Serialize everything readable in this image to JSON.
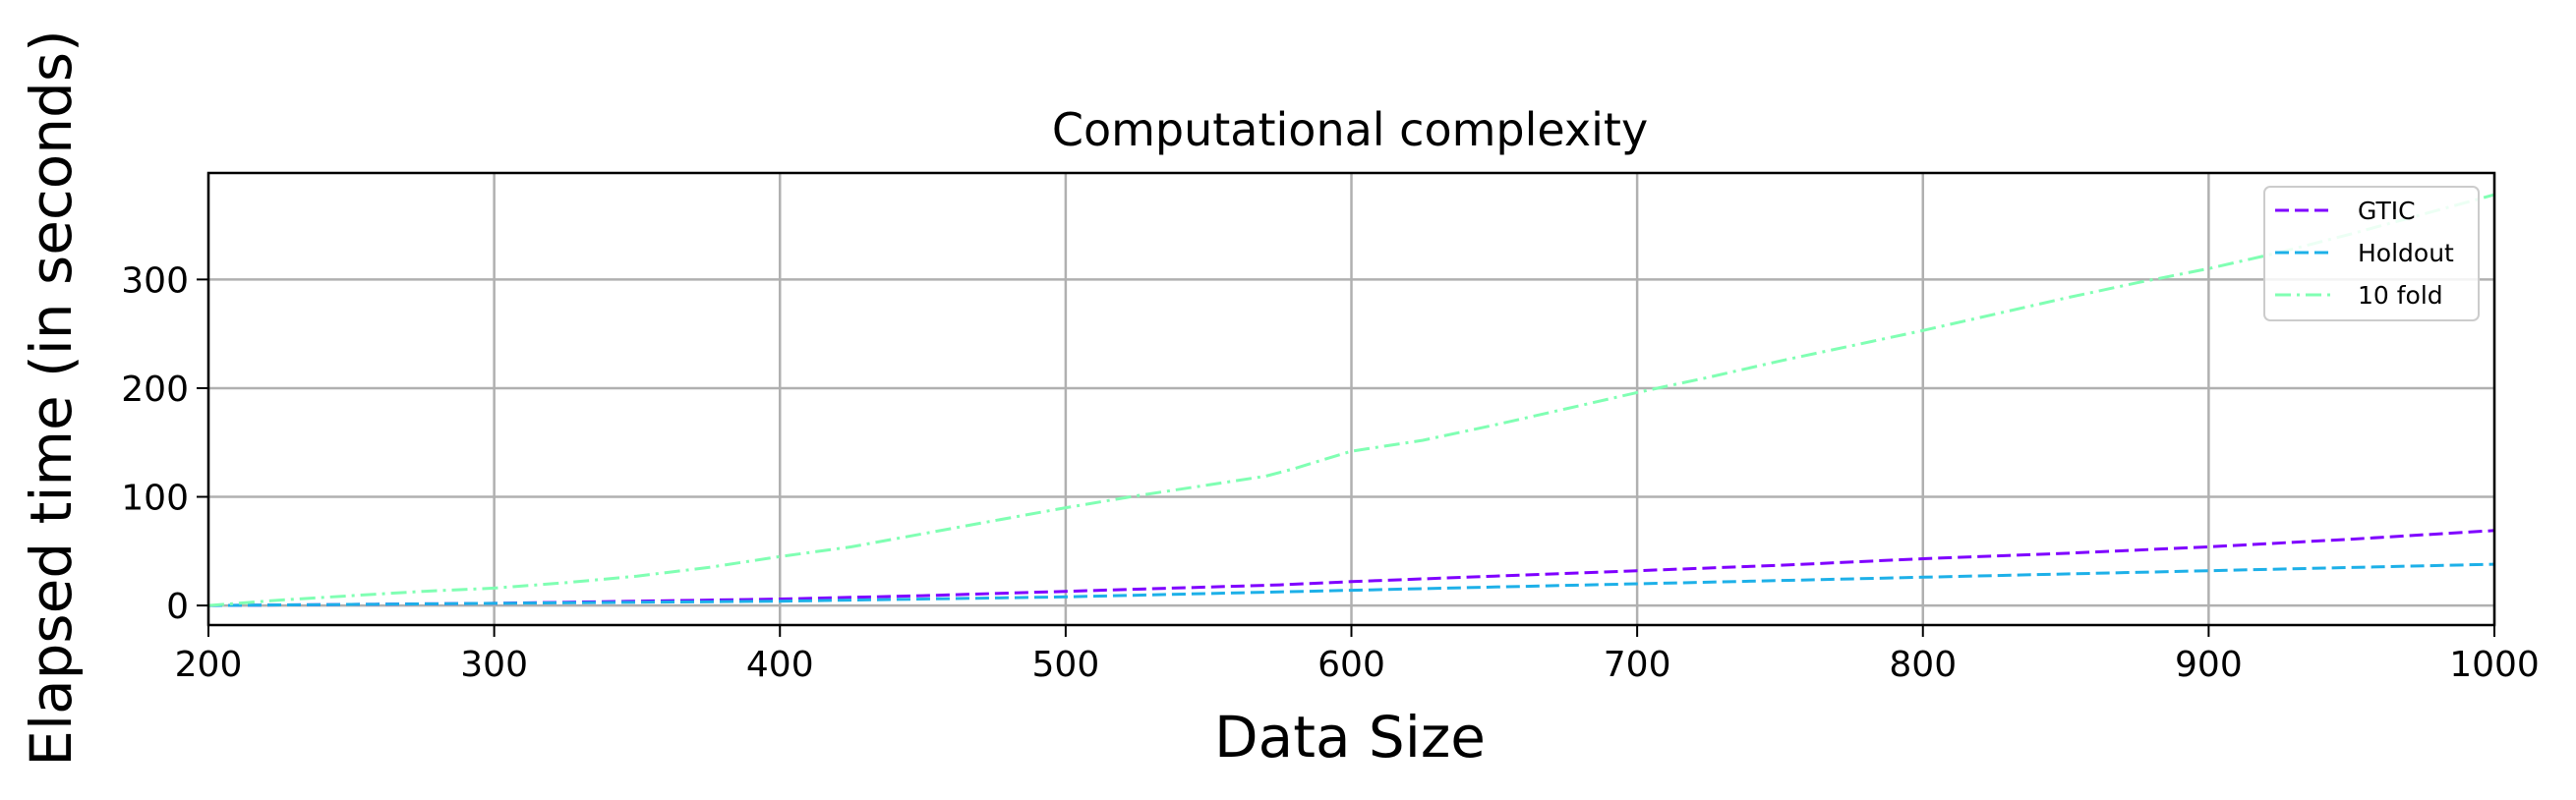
{
  "chart_data": {
    "type": "line",
    "title": "Computational complexity",
    "xlabel": "Data Size",
    "ylabel": "Elapsed time (in seconds)",
    "xlim": [
      200,
      1000
    ],
    "ylim": [
      -18,
      398
    ],
    "xticks": [
      200,
      300,
      400,
      500,
      600,
      700,
      800,
      900,
      1000
    ],
    "yticks": [
      0,
      100,
      200,
      300
    ],
    "grid": true,
    "legend_position": "top-right",
    "series": [
      {
        "name": "GTIC",
        "color": "#7f00ff",
        "linestyle": "dashed",
        "x": [
          200,
          250,
          300,
          350,
          400,
          450,
          500,
          550,
          575,
          600,
          650,
          700,
          750,
          800,
          850,
          900,
          950,
          1000
        ],
        "y": [
          0,
          1,
          2,
          4,
          6,
          9,
          13,
          17,
          19,
          22,
          27,
          32,
          37,
          43,
          48,
          54,
          61,
          69
        ]
      },
      {
        "name": "Holdout",
        "color": "#1db0e8",
        "linestyle": "dashed",
        "x": [
          200,
          250,
          300,
          350,
          400,
          450,
          500,
          550,
          600,
          650,
          700,
          750,
          800,
          850,
          900,
          950,
          1000
        ],
        "y": [
          0,
          1,
          2,
          3,
          4,
          6,
          8,
          11,
          14,
          17,
          20,
          23,
          26,
          29,
          32,
          35,
          38
        ]
      },
      {
        "name": "10 fold",
        "color": "#80ffb3",
        "linestyle": "dashdot",
        "x": [
          200,
          225,
          250,
          275,
          300,
          325,
          350,
          375,
          400,
          425,
          450,
          475,
          500,
          525,
          550,
          570,
          580,
          600,
          625,
          650,
          675,
          700,
          725,
          750,
          775,
          800,
          825,
          850,
          875,
          900,
          925,
          950,
          975,
          1000
        ],
        "y": [
          0,
          5,
          9,
          13,
          16,
          21,
          27,
          35,
          45,
          54,
          66,
          78,
          90,
          101,
          111,
          119,
          126,
          142,
          152,
          166,
          181,
          196,
          210,
          225,
          239,
          253,
          268,
          283,
          297,
          310,
          325,
          342,
          360,
          378
        ]
      }
    ]
  }
}
